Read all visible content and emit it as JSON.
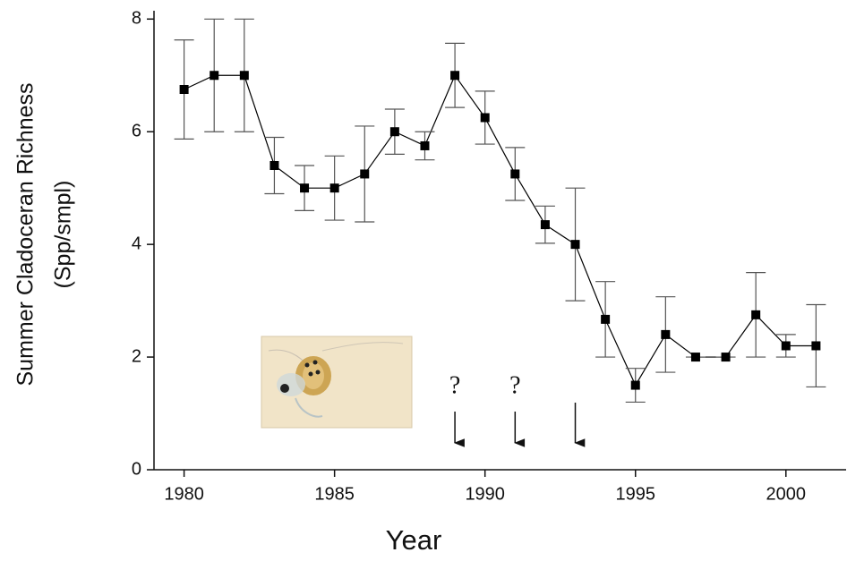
{
  "chart_data": {
    "type": "line",
    "x_label": "Year",
    "y_label": [
      "Summer Cladoceran Richness",
      "(Spp/smpl)"
    ],
    "x": [
      1980,
      1981,
      1982,
      1983,
      1984,
      1985,
      1986,
      1987,
      1988,
      1989,
      1990,
      1991,
      1992,
      1993,
      1994,
      1995,
      1996,
      1997,
      1998,
      1999,
      2000,
      2001
    ],
    "values": [
      6.75,
      7.0,
      7.0,
      5.4,
      5.0,
      5.0,
      5.25,
      6.0,
      5.75,
      7.0,
      6.25,
      5.25,
      4.35,
      4.0,
      2.67,
      1.5,
      2.4,
      2.0,
      2.0,
      2.75,
      2.2,
      2.2
    ],
    "errors": [
      0.88,
      1.0,
      1.0,
      0.5,
      0.4,
      0.57,
      0.85,
      0.4,
      0.25,
      0.57,
      0.47,
      0.47,
      0.33,
      1.0,
      0.67,
      0.3,
      0.67,
      0,
      0,
      0.75,
      0.2,
      0.73
    ],
    "color": "#000000",
    "xlim": [
      1979,
      2002
    ],
    "ylim": [
      0,
      8.1
    ],
    "xticks": [
      1980,
      1985,
      1990,
      1995,
      2000
    ],
    "yticks": [
      0,
      2,
      4,
      6,
      8
    ],
    "annotations": [
      {
        "text": "?",
        "x": 1989
      },
      {
        "text": "?",
        "x": 1991
      }
    ],
    "arrows_x": [
      1989,
      1991,
      1993
    ]
  }
}
